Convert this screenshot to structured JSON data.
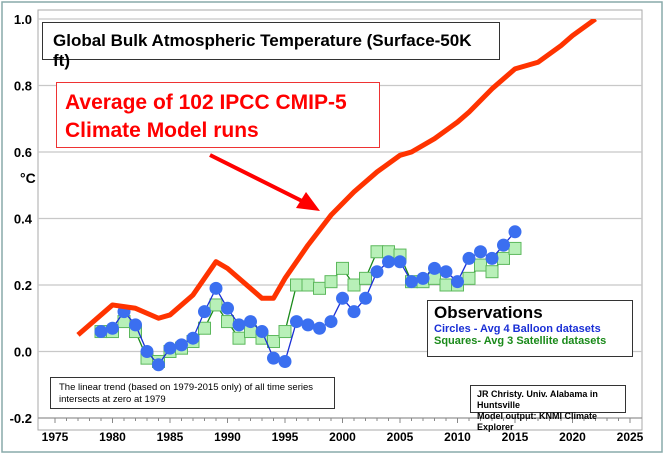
{
  "chart_data": {
    "type": "line",
    "title": "Global Bulk Atmospheric Temperature (Surface-50K ft)",
    "ylabel": "°C",
    "xlabel": "",
    "xlim": [
      1975,
      2025
    ],
    "ylim": [
      -0.2,
      1.0
    ],
    "xticks": [
      "1975",
      "1980",
      "1985",
      "1990",
      "1995",
      "2000",
      "2005",
      "2010",
      "2015",
      "2020",
      "2025"
    ],
    "yticks": [
      "-0.2",
      "0.0",
      "0.2",
      "0.4",
      "0.6",
      "0.8",
      "1.0"
    ],
    "grid": "horizontal",
    "colors": {
      "model": "#ff3300",
      "balloon": "#3b6ff0",
      "satellite": "#b8f0b8",
      "satellite_line": "#1a8a1a",
      "balloon_line": "#1a2fd6"
    },
    "annotation": "Average of 102 IPCC CMIP-5 Climate Model runs",
    "series": [
      {
        "key": "model",
        "x": [
          1977,
          1979,
          1980,
          1982,
          1984,
          1985,
          1987,
          1989,
          1990,
          1993,
          1994,
          1995,
          1997,
          1999,
          2001,
          2003,
          2005,
          2006,
          2008,
          2010,
          2011,
          2013,
          2015,
          2017,
          2019,
          2020,
          2022
        ],
        "y": [
          0.05,
          0.11,
          0.14,
          0.13,
          0.1,
          0.11,
          0.17,
          0.27,
          0.25,
          0.16,
          0.16,
          0.22,
          0.32,
          0.41,
          0.48,
          0.54,
          0.59,
          0.6,
          0.64,
          0.69,
          0.72,
          0.79,
          0.85,
          0.87,
          0.92,
          0.95,
          1.0
        ]
      },
      {
        "key": "balloon",
        "x": [
          1979,
          1980,
          1981,
          1982,
          1983,
          1984,
          1985,
          1986,
          1987,
          1988,
          1989,
          1990,
          1991,
          1992,
          1993,
          1994,
          1995,
          1996,
          1997,
          1998,
          1999,
          2000,
          2001,
          2002,
          2003,
          2004,
          2005,
          2006,
          2007,
          2008,
          2009,
          2010,
          2011,
          2012,
          2013,
          2014,
          2015
        ],
        "y": [
          0.06,
          0.07,
          0.12,
          0.08,
          0.0,
          -0.04,
          0.01,
          0.02,
          0.04,
          0.12,
          0.19,
          0.13,
          0.08,
          0.09,
          0.06,
          -0.02,
          -0.03,
          0.09,
          0.08,
          0.07,
          0.09,
          0.16,
          0.12,
          0.16,
          0.24,
          0.27,
          0.27,
          0.21,
          0.22,
          0.25,
          0.24,
          0.21,
          0.28,
          0.3,
          0.28,
          0.32,
          0.36
        ]
      },
      {
        "key": "satellite",
        "x": [
          1979,
          1980,
          1981,
          1982,
          1983,
          1984,
          1985,
          1986,
          1987,
          1988,
          1989,
          1990,
          1991,
          1992,
          1993,
          1994,
          1995,
          1996,
          1997,
          1998,
          1999,
          2000,
          2001,
          2002,
          2003,
          2004,
          2005,
          2006,
          2007,
          2008,
          2009,
          2010,
          2011,
          2012,
          2013,
          2014,
          2015
        ],
        "y": [
          0.06,
          0.06,
          0.09,
          0.06,
          -0.02,
          -0.03,
          0.0,
          0.01,
          0.03,
          0.07,
          0.14,
          0.09,
          0.04,
          0.06,
          0.04,
          0.03,
          0.06,
          0.2,
          0.2,
          0.19,
          0.21,
          0.25,
          0.2,
          0.22,
          0.3,
          0.3,
          0.29,
          0.21,
          0.21,
          0.22,
          0.2,
          0.2,
          0.22,
          0.26,
          0.24,
          0.28,
          0.31
        ]
      }
    ],
    "legend": {
      "title": "Observations",
      "circles": "Circles - Avg 4 Balloon datasets",
      "squares": "Squares- Avg 3 Satellite datasets",
      "placement": "center-right"
    },
    "note": "The linear trend (based on 1979-2015 only) of all time series intersects at zero at 1979",
    "credit_line1": "JR Christy. Univ. Alabama in Huntsville",
    "credit_line2": "Model output: KNMI Climate Explorer"
  }
}
